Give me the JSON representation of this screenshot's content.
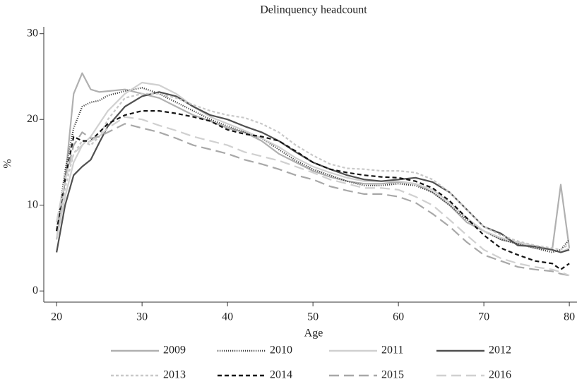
{
  "chart_data": {
    "type": "line",
    "title": "Delinquency headcount",
    "x_label": "Age",
    "y_label": "%",
    "x": [
      20,
      21,
      22,
      23,
      24,
      25,
      26,
      28,
      30,
      32,
      34,
      36,
      38,
      40,
      42,
      44,
      46,
      48,
      50,
      52,
      54,
      56,
      58,
      60,
      62,
      64,
      66,
      68,
      70,
      72,
      74,
      76,
      78,
      79,
      80
    ],
    "xlim": [
      18.5,
      80.9
    ],
    "ylim": [
      -1.3,
      30.8
    ],
    "xticks": [
      20,
      30,
      40,
      50,
      60,
      70,
      80
    ],
    "yticks": [
      0,
      10,
      20,
      30
    ],
    "series": [
      {
        "name": "2009",
        "color": "#b0b0b0",
        "style": "solid",
        "values": [
          6,
          13,
          23,
          25.4,
          23.5,
          23.2,
          23.3,
          23.5,
          23,
          22.5,
          21.5,
          20.5,
          19.8,
          19,
          18.5,
          17.5,
          16,
          15,
          14,
          13.3,
          12.8,
          12.5,
          12.5,
          12.7,
          12.5,
          11.5,
          10,
          8,
          7,
          6,
          5.5,
          5,
          4.8,
          12.4,
          5
        ]
      },
      {
        "name": "2010",
        "color": "#404040",
        "style": "dotted",
        "values": [
          7,
          14,
          19,
          21.5,
          22,
          22.2,
          22.8,
          23.3,
          23.7,
          23,
          22,
          21,
          20,
          19.2,
          18.5,
          17.8,
          16.5,
          15.2,
          14.2,
          13.5,
          12.8,
          12.3,
          12.3,
          12.5,
          12.3,
          11.5,
          10,
          8.3,
          7,
          6,
          5.5,
          5,
          4.5,
          4.8,
          6
        ]
      },
      {
        "name": "2011",
        "color": "#d0d0d0",
        "style": "solid",
        "values": [
          6,
          11,
          15,
          17,
          18,
          19.5,
          21,
          23,
          24.3,
          24,
          23,
          21.5,
          20.3,
          19.5,
          18.7,
          17.8,
          16.8,
          15.5,
          14.5,
          13.8,
          13.2,
          12.8,
          12.8,
          12.8,
          12.5,
          11.8,
          10.3,
          8.5,
          7,
          6.2,
          5.7,
          5.2,
          4.8,
          4.5,
          5
        ]
      },
      {
        "name": "2012",
        "color": "#505050",
        "style": "solid",
        "values": [
          4.5,
          10,
          13.5,
          14.5,
          15.3,
          17.3,
          19.2,
          21.5,
          22.7,
          23.2,
          22.7,
          21.5,
          20.5,
          20,
          19.2,
          18.5,
          17.5,
          16.2,
          15,
          14.2,
          13.5,
          13,
          12.8,
          13,
          13.2,
          12.7,
          11.5,
          9.5,
          7.5,
          6.7,
          5.3,
          5.2,
          4.8,
          4.5,
          4.8
        ]
      },
      {
        "name": "2013",
        "color": "#c8c8c8",
        "style": "shortdash",
        "values": [
          6,
          12,
          16,
          17.5,
          17,
          18,
          20,
          22.5,
          23,
          23,
          22.5,
          21.7,
          21,
          20.5,
          20.2,
          19.5,
          18.5,
          17,
          15.8,
          14.8,
          14.3,
          14.2,
          14,
          14,
          13.8,
          13,
          11.5,
          9.5,
          7.5,
          6.5,
          5.8,
          5.3,
          5,
          4.8,
          5.5
        ]
      },
      {
        "name": "2014",
        "color": "#151515",
        "style": "dashed",
        "values": [
          7,
          13,
          18,
          17.5,
          17.5,
          18.5,
          19.5,
          20.5,
          21,
          21,
          20.7,
          20.3,
          19.8,
          18.8,
          18.3,
          18,
          17.5,
          16.3,
          15,
          14.2,
          13.8,
          13.5,
          13.3,
          13.2,
          12.8,
          12,
          10.5,
          8.5,
          6.5,
          5,
          4.2,
          3.5,
          3.2,
          2.5,
          3.2
        ]
      },
      {
        "name": "2015",
        "color": "#a8a8a8",
        "style": "longdash",
        "values": [
          8,
          13,
          17,
          18.5,
          17.8,
          18,
          18.5,
          19.5,
          19,
          18.5,
          17.8,
          17,
          16.5,
          16,
          15.3,
          14.8,
          14.2,
          13.5,
          13,
          12.2,
          11.7,
          11.3,
          11.3,
          11,
          10.3,
          9,
          7.5,
          5.7,
          4.2,
          3.5,
          2.8,
          2.5,
          2.3,
          2,
          1.8
        ]
      },
      {
        "name": "2016",
        "color": "#d0d0d0",
        "style": "longdash",
        "values": [
          8,
          13,
          16,
          17,
          17.5,
          18,
          19,
          20.3,
          20,
          19.3,
          18.7,
          18,
          17.5,
          17,
          16.2,
          15.7,
          15.2,
          14.5,
          13.8,
          13,
          12.5,
          12,
          12,
          11.8,
          11,
          10,
          8.3,
          6.5,
          4.8,
          3.8,
          3.2,
          2.8,
          2.5,
          2.2,
          1.8
        ]
      }
    ]
  }
}
